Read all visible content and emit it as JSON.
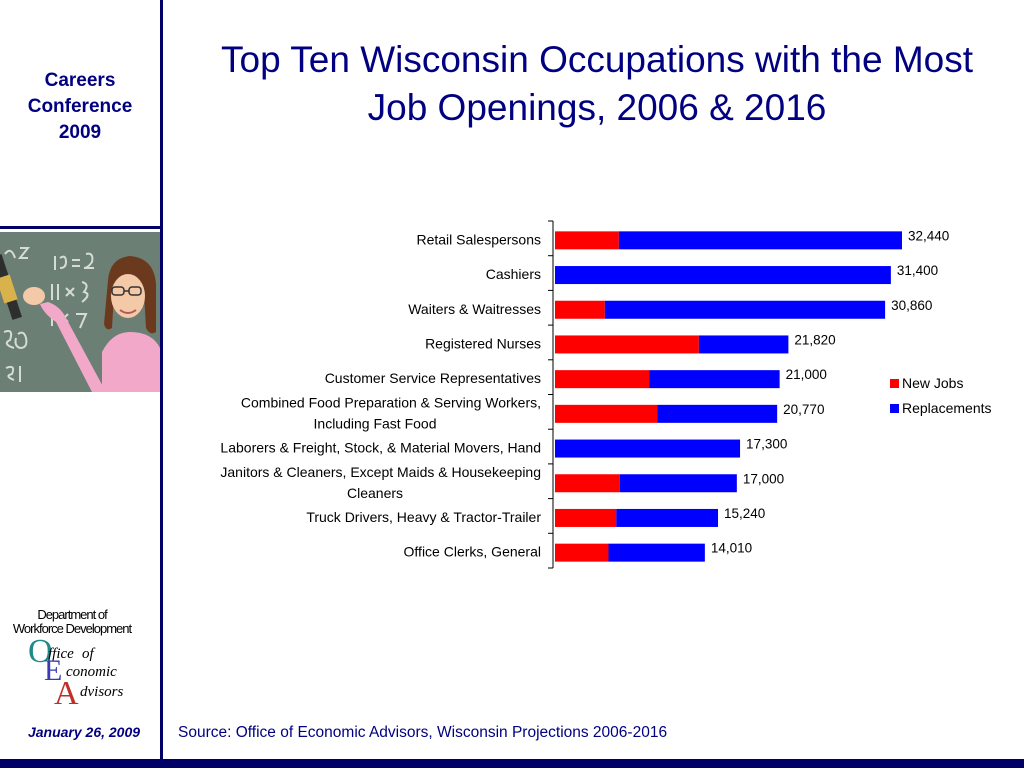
{
  "sidebar": {
    "conference_lines": [
      "Careers",
      "Conference",
      "2009"
    ],
    "date": "January 26, 2009",
    "logo": {
      "top_lines": [
        "Department of",
        "Workforce Development"
      ],
      "office": "ffice",
      "of": "of",
      "economic": "conomic",
      "advisors": "dvisors",
      "letters": [
        "O",
        "E",
        "A"
      ]
    }
  },
  "slide": {
    "title_line1": "Top Ten Wisconsin Occupations with the Most",
    "title_line2": "Job Openings, 2006 & 2016",
    "source": "Source: Office of Economic Advisors, Wisconsin Projections 2006-2016"
  },
  "colors": {
    "navy": "#000080",
    "new_jobs": "#ff0000",
    "replacements": "#0000ff"
  },
  "chart_data": {
    "type": "bar",
    "orientation": "horizontal",
    "stacked": true,
    "title": "Top Ten Wisconsin Occupations with the Most Job Openings, 2006 & 2016",
    "xlabel": "",
    "ylabel": "",
    "xlim": [
      0,
      32440
    ],
    "grid": false,
    "legend_position": "right",
    "categories": [
      [
        "Retail Salespersons"
      ],
      [
        "Cashiers"
      ],
      [
        "Waiters & Waitresses"
      ],
      [
        "Registered Nurses"
      ],
      [
        "Customer Service Representatives"
      ],
      [
        "Combined Food Preparation & Serving Workers,",
        "Including Fast Food"
      ],
      [
        "Laborers & Freight, Stock, & Material Movers, Hand"
      ],
      [
        "Janitors & Cleaners, Except Maids & Housekeeping",
        "Cleaners"
      ],
      [
        "Truck Drivers, Heavy & Tractor-Trailer"
      ],
      [
        "Office Clerks, General"
      ]
    ],
    "series": [
      {
        "name": "New Jobs",
        "color": "#ff0000",
        "values": [
          5970,
          0,
          4660,
          13450,
          8800,
          9580,
          0,
          6050,
          5730,
          5000
        ]
      },
      {
        "name": "Replacements",
        "color": "#0000ff",
        "values": [
          26470,
          31400,
          26200,
          8370,
          12200,
          11190,
          17300,
          10950,
          9510,
          9010
        ]
      }
    ],
    "totals": [
      32440,
      31400,
      30860,
      21820,
      21000,
      20770,
      17300,
      17000,
      15240,
      14010
    ],
    "total_labels": [
      "32,440",
      "31,400",
      "30,860",
      "21,820",
      "21,000",
      "20,770",
      "17,300",
      "17,000",
      "15,240",
      "14,010"
    ]
  }
}
